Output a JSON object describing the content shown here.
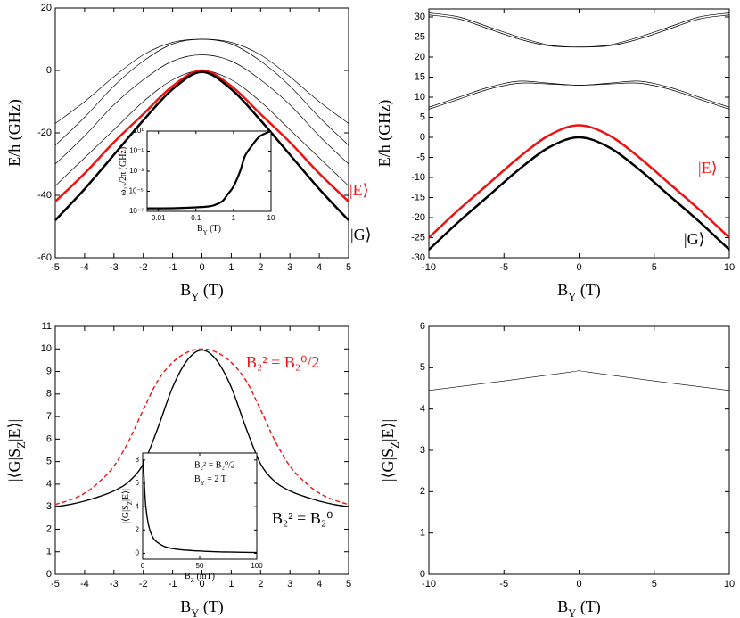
{
  "chart_data": [
    {
      "type": "line",
      "xlabel": [
        "B",
        "Y",
        " (T)"
      ],
      "ylabel": [
        "E/h (GHz)"
      ],
      "xlim": [
        -5,
        5
      ],
      "ylim": [
        -60,
        20
      ],
      "xticks": [
        -5,
        -4,
        -3,
        -2,
        -1,
        0,
        1,
        2,
        3,
        4,
        5
      ],
      "yticks": [
        -60,
        -40,
        -20,
        0,
        20
      ],
      "x": [
        -5,
        -4,
        -3,
        -2,
        -1,
        0,
        1,
        2,
        3,
        4,
        5
      ],
      "series": [
        {
          "color": "#000000",
          "linewidth": 0.7,
          "values": [
            -17,
            -10,
            -2,
            5,
            9,
            10,
            9,
            5,
            -2,
            -10,
            -17
          ]
        },
        {
          "color": "#000000",
          "linewidth": 0.7,
          "values": [
            -24,
            -15,
            -5,
            3,
            8.5,
            10,
            8.5,
            3,
            -5,
            -15,
            -24
          ]
        },
        {
          "color": "#000000",
          "linewidth": 0.7,
          "values": [
            -30,
            -21,
            -11,
            -3,
            3,
            5,
            3,
            -3,
            -11,
            -21,
            -30
          ]
        },
        {
          "color": "#000000",
          "linewidth": 0.7,
          "values": [
            -37,
            -28,
            -19,
            -10,
            -3,
            0,
            -3,
            -10,
            -19,
            -28,
            -37
          ]
        },
        {
          "color": "#ee1111",
          "linewidth": 2.5,
          "values": [
            -42,
            -33,
            -23,
            -14,
            -5,
            0,
            -5,
            -14,
            -23,
            -33,
            -42
          ]
        },
        {
          "color": "#000000",
          "linewidth": 2.5,
          "values": [
            -48,
            -38,
            -27,
            -16,
            -6,
            -0.5,
            -6,
            -16,
            -27,
            -38,
            -48
          ]
        }
      ],
      "annotations": [
        {
          "text": "|E⟩",
          "color": "#ee1111"
        },
        {
          "text": "|G⟩",
          "color": "#000000"
        }
      ]
    },
    {
      "type": "line",
      "xlabel": [
        "B",
        "Y",
        " (T)"
      ],
      "ylabel": [
        "E/h (GHz)"
      ],
      "xlim": [
        -10,
        10
      ],
      "ylim": [
        -30,
        32
      ],
      "xticks": [
        -10,
        -5,
        0,
        5,
        10
      ],
      "yticks": [
        -30,
        -25,
        -20,
        -15,
        -10,
        -5,
        0,
        5,
        10,
        15,
        20,
        25,
        30
      ],
      "x": [
        -10,
        -8,
        -6,
        -4,
        -2,
        0,
        2,
        4,
        6,
        8,
        10
      ],
      "series": [
        {
          "color": "#000000",
          "linewidth": 0.7,
          "values": [
            31,
            30,
            27.5,
            25,
            23,
            22.5,
            23,
            25,
            27.5,
            30,
            31
          ]
        },
        {
          "color": "#000000",
          "linewidth": 0.7,
          "values": [
            30.5,
            29.5,
            27,
            24.5,
            22.8,
            22.5,
            22.8,
            24.5,
            27,
            29.5,
            30.5
          ]
        },
        {
          "color": "#000000",
          "linewidth": 0.7,
          "values": [
            7.5,
            10,
            12.5,
            14,
            13.5,
            13,
            13.5,
            14,
            12.5,
            10,
            7.5
          ]
        },
        {
          "color": "#000000",
          "linewidth": 0.7,
          "values": [
            7,
            9.5,
            12,
            13.5,
            13.3,
            13,
            13.3,
            13.5,
            12,
            9.5,
            7
          ]
        },
        {
          "color": "#ee1111",
          "linewidth": 2.5,
          "values": [
            -25,
            -18,
            -11.5,
            -5,
            0.5,
            3,
            0.5,
            -5,
            -11.5,
            -18,
            -25
          ]
        },
        {
          "color": "#000000",
          "linewidth": 2.5,
          "values": [
            -28,
            -21,
            -14.5,
            -8,
            -2.5,
            0,
            -2.5,
            -8,
            -14.5,
            -21,
            -28
          ]
        }
      ],
      "annotations": [
        {
          "text": "|E⟩",
          "color": "#ee1111"
        },
        {
          "text": "|G⟩",
          "color": "#000000"
        }
      ]
    },
    {
      "type": "line",
      "xlabel": [
        "B",
        "Y",
        " (T)"
      ],
      "ylabel": [
        "|⟨G|S",
        "Z",
        "|E⟩|"
      ],
      "xlim": [
        -5,
        5
      ],
      "ylim": [
        0,
        11
      ],
      "xticks": [
        -5,
        -4,
        -3,
        -2,
        -1,
        0,
        1,
        2,
        3,
        4,
        5
      ],
      "yticks": [
        0,
        1,
        2,
        3,
        4,
        5,
        6,
        7,
        8,
        9,
        10,
        11
      ],
      "x": [
        -5,
        -4.5,
        -4,
        -3.5,
        -3,
        -2.5,
        -2,
        -1.5,
        -1,
        -0.5,
        0,
        0.5,
        1,
        1.5,
        2,
        2.5,
        3,
        3.5,
        4,
        4.5,
        5
      ],
      "series": [
        {
          "color": "#ee1111",
          "linewidth": 1.4,
          "dashed": true,
          "values": [
            3.1,
            3.3,
            3.6,
            4.1,
            4.8,
            5.9,
            7.3,
            8.6,
            9.4,
            9.85,
            10,
            9.85,
            9.4,
            8.6,
            7.3,
            5.9,
            4.8,
            4.1,
            3.6,
            3.3,
            3.1
          ]
        },
        {
          "color": "#000000",
          "linewidth": 1.4,
          "values": [
            3.0,
            3.1,
            3.25,
            3.45,
            3.7,
            4.1,
            4.9,
            6.5,
            8.3,
            9.5,
            9.95,
            9.5,
            8.3,
            6.5,
            4.9,
            4.1,
            3.7,
            3.45,
            3.25,
            3.1,
            3.0
          ]
        }
      ],
      "annotations": [
        {
          "text": "B₂² = B₂⁰/2",
          "color": "#ee1111"
        },
        {
          "text": "B₂² = B₂⁰",
          "color": "#000000"
        }
      ]
    },
    {
      "type": "line",
      "xlabel": [
        "B",
        "Y",
        " (T)"
      ],
      "ylabel": [
        "|⟨G|S",
        "Z",
        "|E⟩|"
      ],
      "xlim": [
        -10,
        10
      ],
      "ylim": [
        0,
        6
      ],
      "xticks": [
        -10,
        -5,
        0,
        5,
        10
      ],
      "yticks": [
        0,
        1,
        2,
        3,
        4,
        5,
        6
      ],
      "x": [
        -10,
        -5,
        -0.5,
        0,
        0.5,
        5,
        10
      ],
      "series": [
        {
          "color": "#000000",
          "linewidth": 0.6,
          "values": [
            4.45,
            4.68,
            4.9,
            4.93,
            4.9,
            4.68,
            4.45
          ]
        }
      ],
      "annotations": []
    },
    {
      "type": "line",
      "xlabel": [
        "B",
        "Y",
        " (T)"
      ],
      "ylabel": [
        "ω₁₂/2π (GHz)"
      ],
      "xlog": true,
      "ylog": true,
      "xlim": [
        0.005,
        10
      ],
      "ylim": [
        1e-07,
        10
      ],
      "xticks": [
        0.01,
        0.1,
        1,
        10
      ],
      "yticks": [
        {
          "value": 1e-07,
          "label": "10⁻⁷"
        },
        {
          "value": 1e-05,
          "label": "10⁻⁵"
        },
        {
          "value": 0.001,
          "label": "10⁻³"
        },
        {
          "value": 0.1,
          "label": "10⁻¹"
        },
        {
          "value": 10,
          "label": "10¹"
        }
      ],
      "x": [
        0.005,
        0.01,
        0.03,
        0.1,
        0.2,
        0.3,
        0.5,
        0.7,
        1,
        1.5,
        2,
        3,
        5,
        10
      ],
      "series": [
        {
          "color": "#000000",
          "linewidth": 2.2,
          "values": [
            2e-07,
            2e-07,
            2.1e-07,
            2.5e-07,
            3e-07,
            4e-07,
            1e-06,
            5e-06,
            3e-05,
            0.001,
            0.03,
            0.3,
            3,
            10
          ]
        }
      ],
      "annotations": []
    },
    {
      "type": "line",
      "xlabel": [
        "B",
        "Z",
        " (mT)"
      ],
      "ylabel": [
        "|⟨G|S",
        "Z",
        "|E⟩|"
      ],
      "xlim": [
        0,
        100
      ],
      "ylim": [
        -0.5,
        8.6
      ],
      "xticks": [
        0,
        50,
        100
      ],
      "yticks": [
        0,
        2,
        4,
        6,
        8
      ],
      "x": [
        0.5,
        1,
        2,
        3,
        5,
        7,
        10,
        15,
        20,
        30,
        50,
        70,
        100
      ],
      "series": [
        {
          "color": "#000000",
          "linewidth": 1.4,
          "values": [
            8,
            7,
            5,
            3.8,
            2.5,
            1.8,
            1.2,
            0.8,
            0.55,
            0.35,
            0.2,
            0.12,
            0.07
          ]
        }
      ],
      "annotations": [
        {
          "text": "B₂² = B₂⁰/2",
          "color": "#000000"
        },
        {
          "text": [
            "B",
            "Y",
            " = 2 T"
          ],
          "color": "#000000"
        }
      ]
    }
  ]
}
